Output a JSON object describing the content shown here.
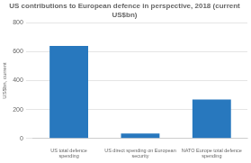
{
  "chart_data": {
    "type": "bar",
    "title": "US contributions to European defence in perspective, 2018 (current\nUS$bn)",
    "categories": [
      "US total defence\nspending",
      "US direct spending on European\nsecurity",
      "NATO Europe total defence\nspending"
    ],
    "values": [
      640,
      35,
      270
    ],
    "color": "#2878be",
    "ylabel": "US$bn, current",
    "ylim": [
      0,
      800
    ],
    "yticks": [
      0,
      200,
      400,
      600,
      800
    ],
    "grid": true
  }
}
